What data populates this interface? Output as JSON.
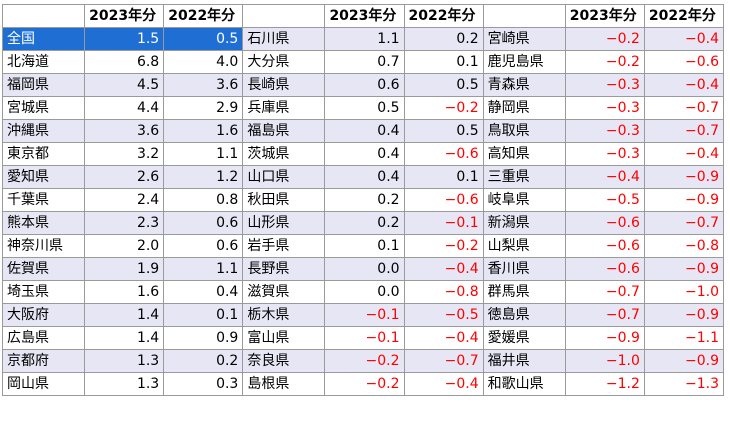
{
  "headers": [
    "",
    "2023年分",
    "2022年分",
    "",
    "2023年分",
    "2022年分",
    "",
    "2023年分",
    "2022年分"
  ],
  "rows": [
    [
      [
        "全国",
        "1.5",
        "0.5"
      ],
      [
        "石川県",
        "1.1",
        "0.2"
      ],
      [
        "宮崎県",
        "−0.2",
        "−0.4"
      ]
    ],
    [
      [
        "北海道",
        "6.8",
        "4.0"
      ],
      [
        "大分県",
        "0.7",
        "0.1"
      ],
      [
        "鹿児島県",
        "−0.2",
        "−0.6"
      ]
    ],
    [
      [
        "福岡県",
        "4.5",
        "3.6"
      ],
      [
        "長崎県",
        "0.6",
        "0.5"
      ],
      [
        "青森県",
        "−0.3",
        "−0.4"
      ]
    ],
    [
      [
        "宮城県",
        "4.4",
        "2.9"
      ],
      [
        "兵庫県",
        "0.5",
        "−0.2"
      ],
      [
        "静岡県",
        "−0.3",
        "−0.7"
      ]
    ],
    [
      [
        "沖縄県",
        "3.6",
        "1.6"
      ],
      [
        "福島県",
        "0.4",
        "0.5"
      ],
      [
        "鳥取県",
        "−0.3",
        "−0.7"
      ]
    ],
    [
      [
        "東京都",
        "3.2",
        "1.1"
      ],
      [
        "茨城県",
        "0.4",
        "−0.6"
      ],
      [
        "高知県",
        "−0.3",
        "−0.4"
      ]
    ],
    [
      [
        "愛知県",
        "2.6",
        "1.2"
      ],
      [
        "山口県",
        "0.4",
        "0.1"
      ],
      [
        "三重県",
        "−0.4",
        "−0.9"
      ]
    ],
    [
      [
        "千葉県",
        "2.4",
        "0.8"
      ],
      [
        "秋田県",
        "0.2",
        "−0.6"
      ],
      [
        "岐阜県",
        "−0.5",
        "−0.9"
      ]
    ],
    [
      [
        "熊本県",
        "2.3",
        "0.6"
      ],
      [
        "山形県",
        "0.2",
        "−0.1"
      ],
      [
        "新潟県",
        "−0.6",
        "−0.7"
      ]
    ],
    [
      [
        "神奈川県",
        "2.0",
        "0.6"
      ],
      [
        "岩手県",
        "0.1",
        "−0.2"
      ],
      [
        "山梨県",
        "−0.6",
        "−0.8"
      ]
    ],
    [
      [
        "佐賀県",
        "1.9",
        "1.1"
      ],
      [
        "長野県",
        "0.0",
        "−0.4"
      ],
      [
        "香川県",
        "−0.6",
        "−0.9"
      ]
    ],
    [
      [
        "埼玉県",
        "1.6",
        "0.4"
      ],
      [
        "滋賀県",
        "0.0",
        "−0.8"
      ],
      [
        "群馬県",
        "−0.7",
        "−1.0"
      ]
    ],
    [
      [
        "大阪府",
        "1.4",
        "0.1"
      ],
      [
        "栃木県",
        "−0.1",
        "−0.5"
      ],
      [
        "徳島県",
        "−0.7",
        "−0.9"
      ]
    ],
    [
      [
        "広島県",
        "1.4",
        "0.9"
      ],
      [
        "富山県",
        "−0.1",
        "−0.4"
      ],
      [
        "愛媛県",
        "−0.9",
        "−1.1"
      ]
    ],
    [
      [
        "京都府",
        "1.3",
        "0.2"
      ],
      [
        "奈良県",
        "−0.2",
        "−0.7"
      ],
      [
        "福井県",
        "−1.0",
        "−0.9"
      ]
    ],
    [
      [
        "岡山県",
        "1.3",
        "0.3"
      ],
      [
        "島根県",
        "−0.2",
        "−0.4"
      ],
      [
        "和歌山県",
        "−1.2",
        "−1.3"
      ]
    ]
  ],
  "colors": {
    "highlight": "#1f6ed4",
    "row_shade": "#e6e6f4",
    "negative": "#ff0000",
    "border": "#9a9a9a"
  }
}
